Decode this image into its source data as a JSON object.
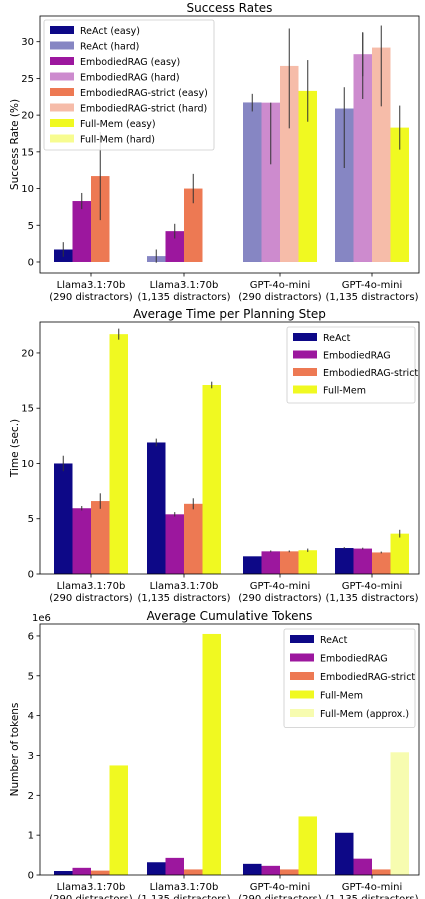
{
  "chart_data": [
    {
      "type": "bar",
      "title": "Success Rates",
      "xlabel": "",
      "ylabel": "Success Rate (%)",
      "ylim": [
        -1.5,
        33.5
      ],
      "yticks": [
        0,
        5,
        10,
        15,
        20,
        25,
        30
      ],
      "ytick_labels": [
        "0",
        "5",
        "10",
        "15",
        "20",
        "25",
        "30"
      ],
      "axis_multiplier": "",
      "categories": [
        "Llama3.1:70b\n(290 distractors)",
        "Llama3.1:70b\n(1,135 distractors)",
        "GPT-4o-mini\n(290 distractors)",
        "GPT-4o-mini\n(1,135 distractors)"
      ],
      "legend_position": "top-left",
      "grid": false,
      "series": [
        {
          "name": "ReAct (easy)",
          "color": "#0d0887",
          "values": [
            1.7,
            0,
            21.7,
            18.3
          ],
          "err": [
            1.0,
            0,
            1.2,
            5.5
          ],
          "slot": 0
        },
        {
          "name": "ReAct (hard)",
          "color": "#8686c3",
          "values": [
            0,
            0.8,
            21.7,
            20.9
          ],
          "err": [
            0,
            0.9,
            0,
            0
          ],
          "slot": 0
        },
        {
          "name": "EmbodiedRAG (easy)",
          "color": "#9c179e",
          "values": [
            8.3,
            4.2,
            17.5,
            26.7
          ],
          "err": [
            1.1,
            1.0,
            4.2,
            4.5
          ],
          "slot": 1
        },
        {
          "name": "EmbodiedRAG (hard)",
          "color": "#cd8bce",
          "values": [
            0,
            0,
            21.7,
            28.3
          ],
          "err": [
            0,
            0,
            0,
            3.0
          ],
          "slot": 1
        },
        {
          "name": "EmbodiedRAG-strict (easy)",
          "color": "#ed7953",
          "values": [
            11.7,
            10.0,
            25.0,
            26.7
          ],
          "err": [
            6.0,
            2.0,
            6.8,
            5.5
          ],
          "slot": 2
        },
        {
          "name": "EmbodiedRAG-strict (hard)",
          "color": "#f6bca9",
          "values": [
            0,
            0,
            26.7,
            29.2
          ],
          "err": [
            0,
            0,
            0,
            0
          ],
          "slot": 2
        },
        {
          "name": "Full-Mem (easy)",
          "color": "#f0f921",
          "values": [
            0,
            0,
            23.3,
            18.3
          ],
          "err": [
            0,
            0,
            4.2,
            3.0
          ],
          "slot": 3
        },
        {
          "name": "Full-Mem (hard)",
          "color": "#f7fc90",
          "values": [
            0,
            0,
            0,
            0
          ],
          "err": [
            0,
            0,
            0,
            0
          ],
          "slot": 3
        }
      ]
    },
    {
      "type": "bar",
      "title": "Average Time per Planning Step",
      "xlabel": "",
      "ylabel": "Time (sec.)",
      "ylim": [
        0,
        22.8
      ],
      "yticks": [
        0,
        5,
        10,
        15,
        20
      ],
      "ytick_labels": [
        "0",
        "5",
        "10",
        "15",
        "20"
      ],
      "axis_multiplier": "",
      "categories": [
        "Llama3.1:70b\n(290 distractors)",
        "Llama3.1:70b\n(1,135 distractors)",
        "GPT-4o-mini\n(290 distractors)",
        "GPT-4o-mini\n(1,135 distractors)"
      ],
      "legend_position": "top-right",
      "grid": false,
      "series": [
        {
          "name": "ReAct",
          "color": "#0d0887",
          "values": [
            10.0,
            11.9,
            1.6,
            2.35
          ],
          "err": [
            0.7,
            0.35,
            0,
            0.08
          ],
          "slot": 0
        },
        {
          "name": "EmbodiedRAG",
          "color": "#9c179e",
          "values": [
            5.95,
            5.4,
            2.05,
            2.3
          ],
          "err": [
            0.2,
            0.2,
            0.08,
            0.08
          ],
          "slot": 1
        },
        {
          "name": "EmbodiedRAG-strict",
          "color": "#ed7953",
          "values": [
            6.6,
            6.35,
            2.05,
            1.95
          ],
          "err": [
            0.7,
            0.5,
            0.08,
            0.08
          ],
          "slot": 2
        },
        {
          "name": "Full-Mem",
          "color": "#f0f921",
          "values": [
            21.7,
            17.1,
            2.15,
            3.65
          ],
          "err": [
            0.5,
            0.3,
            0.15,
            0.35
          ],
          "slot": 3
        }
      ]
    },
    {
      "type": "bar",
      "title": "Average Cumulative Tokens",
      "xlabel": "",
      "ylabel": "Number of tokens",
      "ylim": [
        0,
        6.3
      ],
      "yticks": [
        0,
        1,
        2,
        3,
        4,
        5,
        6
      ],
      "ytick_labels": [
        "0",
        "1",
        "2",
        "3",
        "4",
        "5",
        "6"
      ],
      "axis_multiplier": "1e6",
      "categories": [
        "Llama3.1:70b\n(290 distractors)",
        "Llama3.1:70b\n(1,135 distractors)",
        "GPT-4o-mini\n(290 distractors)",
        "GPT-4o-mini\n(1,135 distractors)"
      ],
      "legend_position": "top-right",
      "grid": false,
      "series": [
        {
          "name": "ReAct",
          "color": "#0d0887",
          "values": [
            0.1,
            0.32,
            0.28,
            1.06
          ],
          "err": [
            0,
            0,
            0,
            0
          ],
          "slot": 0
        },
        {
          "name": "EmbodiedRAG",
          "color": "#9c179e",
          "values": [
            0.18,
            0.43,
            0.23,
            0.41
          ],
          "err": [
            0,
            0,
            0,
            0
          ],
          "slot": 1
        },
        {
          "name": "EmbodiedRAG-strict",
          "color": "#ed7953",
          "values": [
            0.11,
            0.14,
            0.14,
            0.14
          ],
          "err": [
            0,
            0,
            0,
            0
          ],
          "slot": 2
        },
        {
          "name": "Full-Mem",
          "color": "#f0f921",
          "values": [
            2.75,
            6.05,
            1.47,
            1.88
          ],
          "err": [
            0,
            0,
            0,
            0
          ],
          "slot": 3
        },
        {
          "name": "Full-Mem (approx.)",
          "color": "#f7fcb0",
          "values": [
            0,
            0,
            0,
            3.08
          ],
          "err": [
            0,
            0,
            0,
            0
          ],
          "slot": 3
        }
      ]
    }
  ]
}
